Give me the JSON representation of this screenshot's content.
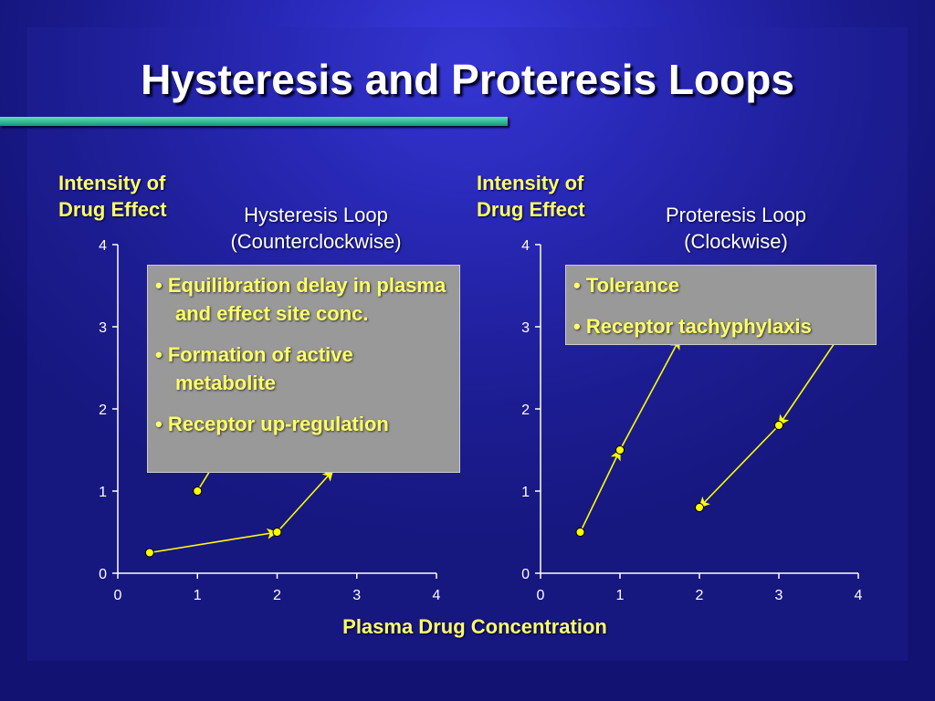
{
  "slide": {
    "title": "Hysteresis and Proteresis Loops",
    "xlabel": "Plasma Drug Concentration"
  },
  "colors": {
    "accent_text": "#ffff66",
    "point": "#ffff00",
    "box": "#999999"
  },
  "chart_data": [
    {
      "type": "line",
      "title_line1": "Hysteresis Loop",
      "title_line2": "(Counterclockwise)",
      "ylabel_line1": "Intensity of",
      "ylabel_line2": "Drug Effect",
      "xlim": [
        0,
        4
      ],
      "ylim": [
        0,
        4
      ],
      "xticks": [
        "0",
        "1",
        "2",
        "3",
        "4"
      ],
      "yticks": [
        "0",
        "1",
        "2",
        "3",
        "4"
      ],
      "points": [
        [
          0.4,
          0.25
        ],
        [
          2,
          0.5
        ],
        [
          1,
          1
        ]
      ],
      "arrows": [
        [
          [
            0.4,
            0.25
          ],
          [
            2,
            0.5
          ]
        ],
        [
          [
            2,
            0.5
          ],
          [
            2.7,
            1.25
          ]
        ],
        [
          [
            1,
            1
          ],
          [
            1.35,
            1.55
          ]
        ]
      ],
      "annotations": [
        "Equilibration delay in plasma and effect site conc.",
        "Formation of active metabolite",
        "Receptor up-regulation"
      ]
    },
    {
      "type": "line",
      "title_line1": "Proteresis Loop",
      "title_line2": "(Clockwise)",
      "ylabel_line1": "Intensity of",
      "ylabel_line2": "Drug Effect",
      "xlim": [
        0,
        4
      ],
      "ylim": [
        0,
        4
      ],
      "xticks": [
        "0",
        "1",
        "2",
        "3",
        "4"
      ],
      "yticks": [
        "0",
        "1",
        "2",
        "3",
        "4"
      ],
      "points": [
        [
          0.5,
          0.5
        ],
        [
          1,
          1.5
        ],
        [
          3,
          1.8
        ],
        [
          2,
          0.8
        ]
      ],
      "arrows": [
        [
          [
            0.5,
            0.5
          ],
          [
            1,
            1.5
          ]
        ],
        [
          [
            1,
            1.5
          ],
          [
            1.75,
            2.85
          ]
        ],
        [
          [
            3.7,
            2.8
          ],
          [
            3,
            1.8
          ]
        ],
        [
          [
            3,
            1.8
          ],
          [
            2,
            0.8
          ]
        ]
      ],
      "annotations": [
        "Tolerance",
        "Receptor tachyphylaxis"
      ]
    }
  ]
}
